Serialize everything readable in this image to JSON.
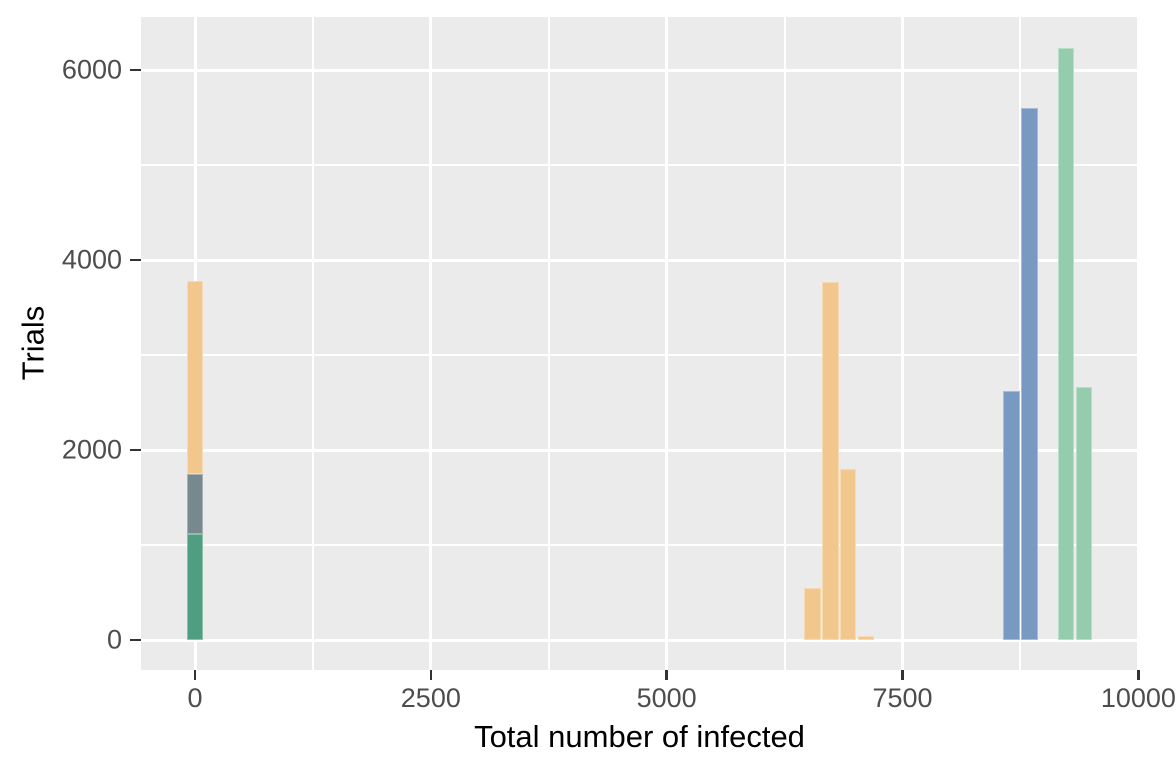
{
  "chart_data": {
    "type": "histogram",
    "title": "",
    "xlabel": "Total number of infected",
    "ylabel": "Trials",
    "legend": "none",
    "grid": true,
    "panel_background": "#EBEBEB",
    "gridline_color": "#FFFFFF",
    "tick_mark_color": "#333333",
    "tick_label_color": "#4D4D4D",
    "axis_title_color": "#000000",
    "x_axis": {
      "range": [
        -575,
        10020
      ],
      "ticks": [
        {
          "value": 0,
          "label": "0"
        },
        {
          "value": 2500,
          "label": "2500"
        },
        {
          "value": 5000,
          "label": "5000"
        },
        {
          "value": 7500,
          "label": "7500"
        },
        {
          "value": 10000,
          "label": "10000"
        }
      ],
      "minor_ticks": [
        1250,
        3750,
        6250,
        8750
      ]
    },
    "y_axis": {
      "range": [
        -315,
        6560
      ],
      "ticks": [
        {
          "value": 0,
          "label": "0"
        },
        {
          "value": 2000,
          "label": "2000"
        },
        {
          "value": 4000,
          "label": "4000"
        },
        {
          "value": 6000,
          "label": "6000"
        }
      ],
      "minor_ticks": [
        1000,
        3000,
        5000
      ]
    },
    "series": [
      {
        "name": "green-dark-segment",
        "color": "#4F9E82",
        "bars": [
          {
            "x0": -90,
            "x1": 95,
            "y0": 0,
            "y1": 1120
          }
        ]
      },
      {
        "name": "slate-gray-segment",
        "color": "#78888F",
        "bars": [
          {
            "x0": -90,
            "x1": 95,
            "y0": 1120,
            "y1": 1750
          }
        ]
      },
      {
        "name": "orange-series",
        "color": "#F2C78D",
        "bars": [
          {
            "x0": -90,
            "x1": 95,
            "y0": 1750,
            "y1": 3780
          },
          {
            "x0": 6450,
            "x1": 6640,
            "y0": 0,
            "y1": 545
          },
          {
            "x0": 6640,
            "x1": 6830,
            "y0": 0,
            "y1": 3770
          },
          {
            "x0": 6830,
            "x1": 7020,
            "y0": 0,
            "y1": 1800
          },
          {
            "x0": 7020,
            "x1": 7210,
            "y0": 0,
            "y1": 40
          }
        ]
      },
      {
        "name": "blue-series",
        "color": "#7899C2",
        "bars": [
          {
            "x0": 8560,
            "x1": 8750,
            "y0": 0,
            "y1": 2620
          },
          {
            "x0": 8750,
            "x1": 8940,
            "y0": 0,
            "y1": 5600
          }
        ]
      },
      {
        "name": "green-light-series",
        "color": "#95CCAD",
        "bars": [
          {
            "x0": 9140,
            "x1": 9330,
            "y0": 0,
            "y1": 6230
          },
          {
            "x0": 9330,
            "x1": 9520,
            "y0": 0,
            "y1": 2660
          }
        ]
      }
    ]
  }
}
